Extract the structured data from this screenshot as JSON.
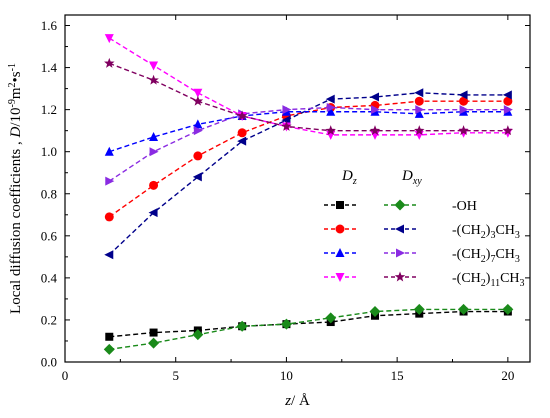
{
  "chart_data": {
    "type": "line",
    "xlabel_parts": [
      {
        "text": "z",
        "italic": true
      },
      {
        "text": "/ Å"
      }
    ],
    "ylabel_parts": [
      {
        "text": "Local diffusion coefficients , "
      },
      {
        "text": "D",
        "italic": true
      },
      {
        "text": "/10"
      },
      {
        "text": "-9",
        "sup": true
      },
      {
        "text": "m"
      },
      {
        "text": "2",
        "sup": true
      },
      {
        "text": "•s"
      },
      {
        "text": "-1",
        "sup": true
      }
    ],
    "xlim": [
      0,
      21
    ],
    "ylim": [
      0,
      1.65
    ],
    "xticks": [
      0,
      5,
      10,
      15,
      20
    ],
    "xtick_labels": [
      "0",
      "5",
      "10",
      "15",
      "20"
    ],
    "yticks": [
      0.0,
      0.2,
      0.4,
      0.6,
      0.8,
      1.0,
      1.2,
      1.4,
      1.6
    ],
    "ytick_labels": [
      "0.0",
      "0.2",
      "0.4",
      "0.6",
      "0.8",
      "1.0",
      "1.2",
      "1.4",
      "1.6"
    ],
    "legend": {
      "placement": "center-right",
      "col_heads": [
        [
          {
            "text": "D",
            "italic": true
          },
          {
            "text": "z",
            "sub": true,
            "italic": true
          }
        ],
        [
          {
            "text": "D",
            "italic": true
          },
          {
            "text": "xy",
            "sub": true,
            "italic": true
          }
        ]
      ],
      "rows": [
        {
          "label": [
            {
              "text": "-OH"
            }
          ],
          "series": [
            "Dz -OH",
            "Dxy -OH"
          ]
        },
        {
          "label": [
            {
              "text": "-(CH"
            },
            {
              "text": "2",
              "sub": true
            },
            {
              "text": ")"
            },
            {
              "text": "3",
              "sub": true
            },
            {
              "text": "CH"
            },
            {
              "text": "3",
              "sub": true
            }
          ],
          "series": [
            "Dz -(CH2)3CH3",
            "Dxy -(CH2)3CH3"
          ]
        },
        {
          "label": [
            {
              "text": "-(CH"
            },
            {
              "text": "2",
              "sub": true
            },
            {
              "text": ")"
            },
            {
              "text": "7",
              "sub": true
            },
            {
              "text": "CH"
            },
            {
              "text": "3",
              "sub": true
            }
          ],
          "series": [
            "Dz -(CH2)7CH3",
            "Dxy -(CH2)7CH3"
          ]
        },
        {
          "label": [
            {
              "text": "-(CH"
            },
            {
              "text": "2",
              "sub": true
            },
            {
              "text": ")"
            },
            {
              "text": "11",
              "sub": true
            },
            {
              "text": "CH"
            },
            {
              "text": "3",
              "sub": true
            }
          ],
          "series": [
            "Dz -(CH2)11CH3",
            "Dxy -(CH2)11CH3"
          ]
        }
      ]
    },
    "x": [
      2,
      4,
      6,
      8,
      10,
      12,
      14,
      16,
      18,
      20
    ],
    "series": [
      {
        "key": "Dz -OH",
        "color": "#000000",
        "marker": "square",
        "values": [
          0.12,
          0.14,
          0.15,
          0.17,
          0.18,
          0.19,
          0.22,
          0.23,
          0.24,
          0.24
        ]
      },
      {
        "key": "Dxy -OH",
        "color": "#1a8a1a",
        "marker": "diamond",
        "values": [
          0.06,
          0.09,
          0.13,
          0.17,
          0.18,
          0.21,
          0.24,
          0.25,
          0.25,
          0.25
        ]
      },
      {
        "key": "Dz -(CH2)3CH3",
        "color": "#ff0000",
        "marker": "circle",
        "values": [
          0.69,
          0.84,
          0.98,
          1.09,
          1.17,
          1.21,
          1.22,
          1.24,
          1.24,
          1.24
        ]
      },
      {
        "key": "Dxy -(CH2)3CH3",
        "color": "#00008b",
        "marker": "triangle-left",
        "values": [
          0.51,
          0.71,
          0.88,
          1.05,
          1.15,
          1.25,
          1.26,
          1.28,
          1.27,
          1.27
        ]
      },
      {
        "key": "Dz -(CH2)7CH3",
        "color": "#0000ff",
        "marker": "triangle-up",
        "values": [
          1.0,
          1.07,
          1.13,
          1.17,
          1.19,
          1.19,
          1.19,
          1.18,
          1.19,
          1.19
        ]
      },
      {
        "key": "Dxy -(CH2)7CH3",
        "color": "#8a2be2",
        "marker": "triangle-right",
        "values": [
          0.86,
          1.0,
          1.1,
          1.18,
          1.2,
          1.21,
          1.2,
          1.2,
          1.2,
          1.2
        ]
      },
      {
        "key": "Dz -(CH2)11CH3",
        "color": "#ff00ff",
        "marker": "triangle-down",
        "values": [
          1.54,
          1.41,
          1.28,
          1.17,
          1.12,
          1.08,
          1.08,
          1.08,
          1.09,
          1.09
        ]
      },
      {
        "key": "Dxy -(CH2)11CH3",
        "color": "#800060",
        "marker": "star",
        "values": [
          1.42,
          1.34,
          1.24,
          1.17,
          1.12,
          1.1,
          1.1,
          1.1,
          1.1,
          1.1
        ]
      }
    ]
  }
}
